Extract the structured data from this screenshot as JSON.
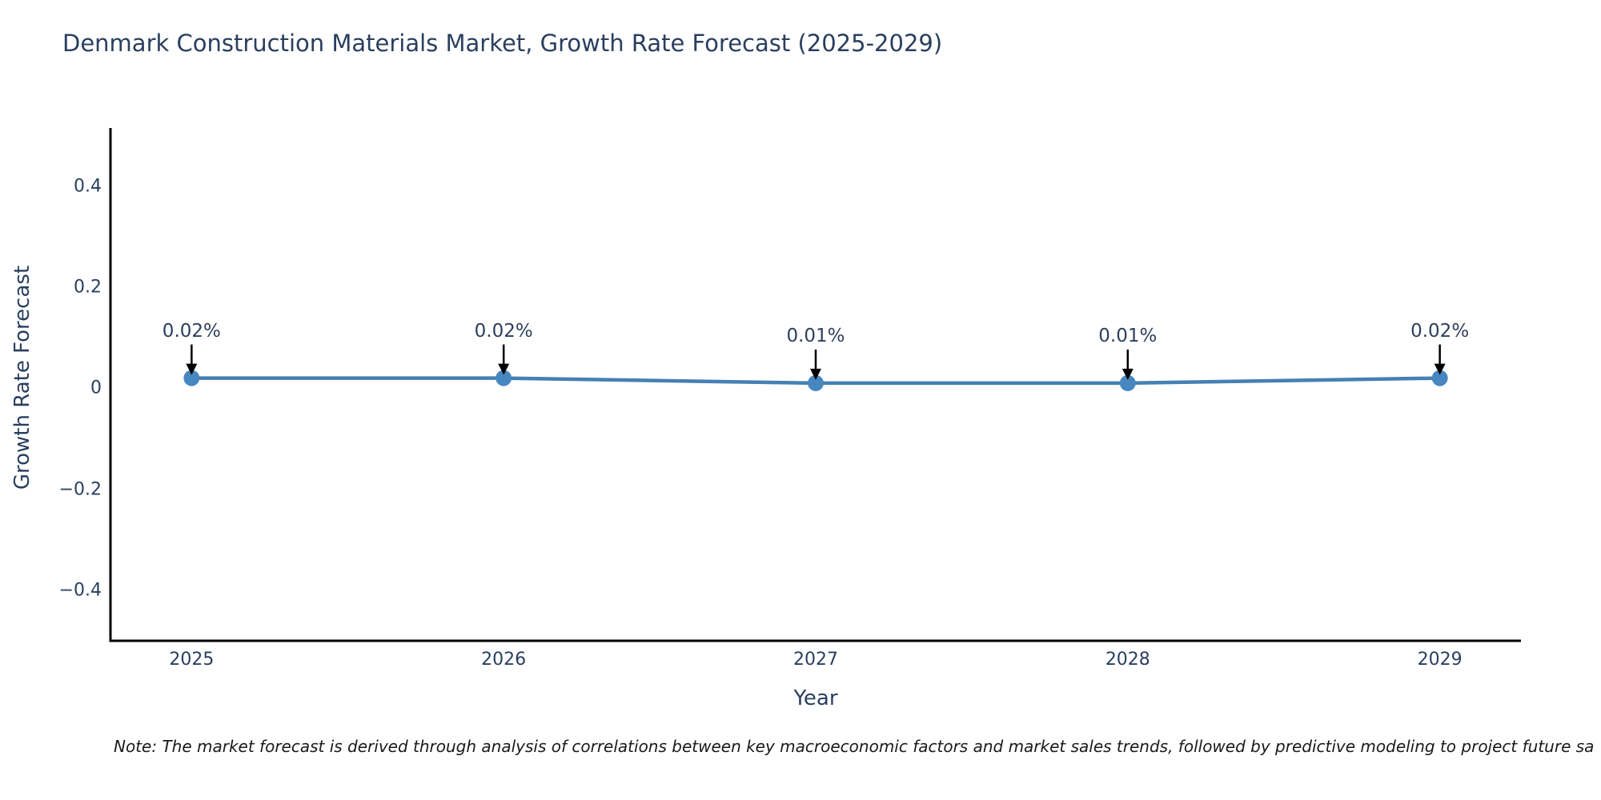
{
  "note": "Note: The market forecast is derived through analysis of correlations between key macroeconomic factors and market sales trends, followed by predictive modeling to project future sa",
  "colors": {
    "title_text": "#2a3f5f",
    "tick_text": "#2a3f5f",
    "annotation_text": "#2e3f5c",
    "axis_line": "#000000",
    "arrow": "#000000",
    "line": "#4580b2",
    "marker": "#4787c0",
    "background": "#ffffff"
  },
  "chart_data": {
    "type": "line",
    "title": "Denmark Construction Materials Market, Growth Rate Forecast (2025-2029)",
    "xlabel": "Year",
    "ylabel": "Growth Rate Forecast",
    "x": [
      2025,
      2026,
      2027,
      2028,
      2029
    ],
    "values": [
      0.02,
      0.02,
      0.01,
      0.01,
      0.02
    ],
    "point_labels": [
      "0.02%",
      "0.02%",
      "0.01%",
      "0.01%",
      "0.02%"
    ],
    "xticks": [
      2025,
      2026,
      2027,
      2028,
      2029
    ],
    "xtick_labels": [
      "2025",
      "2026",
      "2027",
      "2028",
      "2029"
    ],
    "yticks": [
      0.4,
      0.2,
      0,
      -0.2,
      -0.4
    ],
    "ytick_labels": [
      "0.4",
      "0.2",
      "0",
      "−0.2",
      "−0.4"
    ],
    "xlim": [
      2024.74,
      2029.26
    ],
    "ylim": [
      -0.5,
      0.515
    ],
    "grid": false,
    "legend_position": "none",
    "line_color": "#4580b2",
    "marker_color": "#4787c0"
  }
}
